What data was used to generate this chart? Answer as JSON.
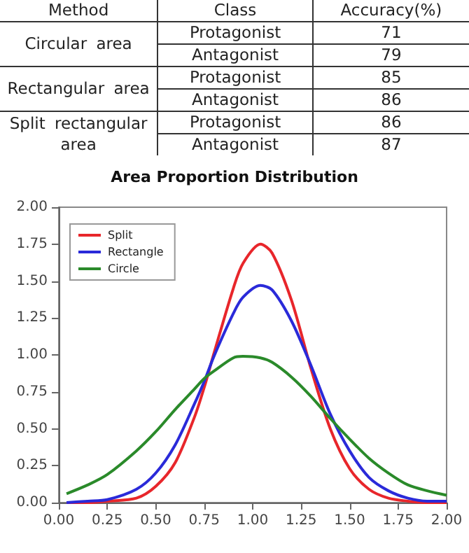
{
  "chart_data": [
    {
      "type": "other",
      "annotations": [
        "Method",
        "Class",
        "Accuracy(%)"
      ],
      "y_categories": [
        "Circular area",
        "Rectangular area",
        "Split rectangular area"
      ],
      "categories": [
        "Protagonist",
        "Antagonist",
        "Protagonist",
        "Antagonist",
        "Protagonist",
        "Antagonist"
      ],
      "values": [
        71,
        79,
        85,
        86,
        86,
        87
      ],
      "data_labels": true
    },
    {
      "type": "line",
      "title": "Area Proportion Distribution",
      "x": [
        0.04,
        0.15,
        0.25,
        0.4,
        0.5,
        0.6,
        0.7,
        0.75,
        0.8,
        0.9,
        0.95,
        1.04,
        1.1,
        1.2,
        1.3,
        1.4,
        1.5,
        1.6,
        1.7,
        1.8,
        1.9,
        2.0
      ],
      "series": [
        {
          "name": "Split",
          "color": "#e8262b",
          "values": [
            0,
            0,
            0.01,
            0.03,
            0.11,
            0.27,
            0.58,
            0.78,
            1.01,
            1.45,
            1.62,
            1.75,
            1.69,
            1.37,
            0.91,
            0.5,
            0.23,
            0.09,
            0.03,
            0.01,
            0,
            0
          ]
        },
        {
          "name": "Rectangle",
          "color": "#2a2ad9",
          "values": [
            0,
            0.01,
            0.02,
            0.09,
            0.2,
            0.39,
            0.67,
            0.82,
            0.99,
            1.28,
            1.39,
            1.47,
            1.44,
            1.23,
            0.93,
            0.6,
            0.35,
            0.17,
            0.08,
            0.03,
            0.01,
            0.01
          ]
        },
        {
          "name": "Circle",
          "color": "#2a8a2a",
          "values": [
            0.06,
            0.12,
            0.19,
            0.35,
            0.48,
            0.63,
            0.77,
            0.84,
            0.89,
            0.98,
            0.99,
            0.98,
            0.95,
            0.85,
            0.72,
            0.57,
            0.43,
            0.3,
            0.2,
            0.12,
            0.08,
            0.05
          ]
        }
      ],
      "xlim": [
        0,
        2
      ],
      "ylim": [
        0,
        2
      ],
      "xticks": [
        {
          "value": 0,
          "label": "0.00"
        },
        {
          "value": 0.25,
          "label": "0.25"
        },
        {
          "value": 0.5,
          "label": "0.50"
        },
        {
          "value": 0.75,
          "label": "0.75"
        },
        {
          "value": 1,
          "label": "1.00"
        },
        {
          "value": 1.25,
          "label": "1.25"
        },
        {
          "value": 1.5,
          "label": "1.50"
        },
        {
          "value": 1.75,
          "label": "1.75"
        },
        {
          "value": 2,
          "label": "2.00"
        }
      ],
      "yticks": [
        {
          "value": 0,
          "label": "0.00"
        },
        {
          "value": 0.25,
          "label": "0.25"
        },
        {
          "value": 0.5,
          "label": "0.50"
        },
        {
          "value": 0.75,
          "label": "0.75"
        },
        {
          "value": 1,
          "label": "1.00"
        },
        {
          "value": 1.25,
          "label": "1.25"
        },
        {
          "value": 1.5,
          "label": "1.50"
        },
        {
          "value": 1.75,
          "label": "1.75"
        },
        {
          "value": 2,
          "label": "2.00"
        }
      ],
      "grid": false,
      "legend": "top left",
      "marker": "none",
      "line_style": "solid"
    }
  ]
}
